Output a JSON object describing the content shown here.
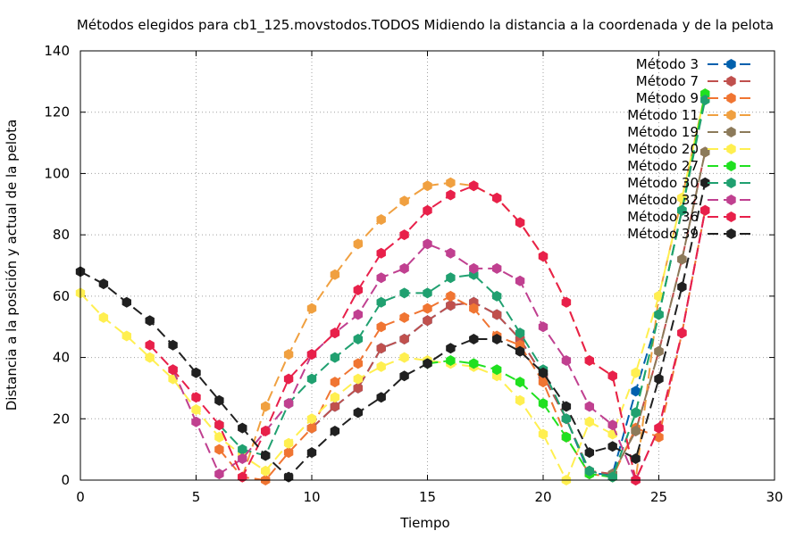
{
  "chart_data": {
    "type": "line",
    "title": "Métodos elegidos para cb1_125.movstodos.TODOS Midiendo la distancia a la coordenada y de la pelota",
    "xlabel": "Tiempo",
    "ylabel": "Distancia a la posición y actual de la pelota",
    "xlim": [
      0,
      30
    ],
    "ylim": [
      0,
      140
    ],
    "xticks": [
      0,
      5,
      10,
      15,
      20,
      25,
      30
    ],
    "yticks": [
      0,
      20,
      40,
      60,
      80,
      100,
      120,
      140
    ],
    "grid": true,
    "legend_position": "top-right",
    "series": [
      {
        "name": "Método 3",
        "color": "#0060ad",
        "points": [
          [
            10,
            17
          ],
          [
            11,
            24
          ],
          [
            12,
            30
          ],
          [
            13,
            43
          ],
          [
            14,
            46
          ],
          [
            15,
            52
          ],
          [
            16,
            57
          ],
          [
            17,
            58
          ],
          [
            18,
            54
          ],
          [
            19,
            46
          ],
          [
            20,
            34
          ],
          [
            21,
            20
          ],
          [
            22,
            2
          ],
          [
            23,
            2
          ],
          [
            24,
            29
          ],
          [
            25,
            54
          ],
          [
            26,
            88
          ],
          [
            27,
            126
          ]
        ]
      },
      {
        "name": "Método 7",
        "color": "#c0504d",
        "points": [
          [
            10,
            17
          ],
          [
            11,
            24
          ],
          [
            12,
            30
          ],
          [
            13,
            43
          ],
          [
            14,
            46
          ],
          [
            15,
            52
          ],
          [
            16,
            57
          ],
          [
            17,
            58
          ],
          [
            18,
            54
          ],
          [
            19,
            46
          ],
          [
            20,
            34
          ],
          [
            21,
            20
          ],
          [
            22,
            3
          ],
          [
            23,
            2
          ],
          [
            24,
            16
          ],
          [
            25,
            42
          ],
          [
            26,
            72
          ],
          [
            27,
            107
          ]
        ]
      },
      {
        "name": "Método 9",
        "color": "#f07532",
        "points": [
          [
            6,
            10
          ],
          [
            7,
            1
          ],
          [
            8,
            0
          ],
          [
            9,
            9
          ],
          [
            10,
            17
          ],
          [
            11,
            32
          ],
          [
            12,
            38
          ],
          [
            13,
            50
          ],
          [
            14,
            53
          ],
          [
            15,
            56
          ],
          [
            16,
            60
          ],
          [
            17,
            56
          ],
          [
            18,
            47
          ],
          [
            19,
            44
          ],
          [
            20,
            32
          ],
          [
            21,
            14
          ],
          [
            22,
            2
          ],
          [
            23,
            1
          ],
          [
            24,
            17
          ],
          [
            25,
            14
          ],
          [
            26,
            48
          ],
          [
            27,
            88
          ]
        ]
      },
      {
        "name": "Método 11",
        "color": "#f0a040",
        "points": [
          [
            7,
            1
          ],
          [
            8,
            24
          ],
          [
            9,
            41
          ],
          [
            10,
            56
          ],
          [
            11,
            67
          ],
          [
            12,
            77
          ],
          [
            13,
            85
          ],
          [
            14,
            91
          ],
          [
            15,
            96
          ],
          [
            16,
            97
          ],
          [
            17,
            96
          ],
          [
            18,
            92
          ],
          [
            19,
            84
          ],
          [
            20,
            73
          ],
          [
            21,
            58
          ],
          [
            22,
            39
          ],
          [
            23,
            34
          ],
          [
            24,
            0
          ],
          [
            25,
            60
          ],
          [
            26,
            92
          ],
          [
            27,
            126
          ]
        ]
      },
      {
        "name": "Método 19",
        "color": "#8c7a5a",
        "points": [
          [
            23,
            2
          ],
          [
            24,
            16
          ],
          [
            25,
            42
          ],
          [
            26,
            72
          ],
          [
            27,
            107
          ]
        ]
      },
      {
        "name": "Método 20",
        "color": "#ffef50",
        "points": [
          [
            0,
            61
          ],
          [
            1,
            53
          ],
          [
            2,
            47
          ],
          [
            3,
            40
          ],
          [
            4,
            33
          ],
          [
            5,
            23
          ],
          [
            6,
            14
          ],
          [
            7,
            8
          ],
          [
            8,
            3
          ],
          [
            9,
            12
          ],
          [
            10,
            20
          ],
          [
            11,
            27
          ],
          [
            12,
            33
          ],
          [
            13,
            37
          ],
          [
            14,
            40
          ],
          [
            15,
            39
          ],
          [
            16,
            38
          ],
          [
            17,
            37
          ],
          [
            18,
            34
          ],
          [
            19,
            26
          ],
          [
            20,
            15
          ],
          [
            21,
            0
          ],
          [
            22,
            19
          ],
          [
            23,
            15
          ],
          [
            24,
            35
          ],
          [
            25,
            60
          ],
          [
            26,
            92
          ],
          [
            27,
            126
          ]
        ]
      },
      {
        "name": "Método 27",
        "color": "#20e020",
        "points": [
          [
            15,
            38
          ],
          [
            16,
            39
          ],
          [
            17,
            38
          ],
          [
            18,
            36
          ],
          [
            19,
            32
          ],
          [
            20,
            25
          ],
          [
            21,
            14
          ],
          [
            22,
            2
          ],
          [
            23,
            1
          ],
          [
            24,
            22
          ],
          [
            25,
            54
          ],
          [
            26,
            88
          ],
          [
            27,
            126
          ]
        ]
      },
      {
        "name": "Método 30",
        "color": "#20a070",
        "points": [
          [
            6,
            18
          ],
          [
            7,
            10
          ],
          [
            8,
            8
          ],
          [
            9,
            25
          ],
          [
            10,
            33
          ],
          [
            11,
            40
          ],
          [
            12,
            46
          ],
          [
            13,
            58
          ],
          [
            14,
            61
          ],
          [
            15,
            61
          ],
          [
            16,
            66
          ],
          [
            17,
            67
          ],
          [
            18,
            60
          ],
          [
            19,
            48
          ],
          [
            20,
            36
          ],
          [
            21,
            20
          ],
          [
            22,
            3
          ],
          [
            23,
            1
          ],
          [
            24,
            22
          ],
          [
            25,
            54
          ],
          [
            26,
            88
          ],
          [
            27,
            124
          ]
        ]
      },
      {
        "name": "Método 32",
        "color": "#c04090",
        "points": [
          [
            4,
            36
          ],
          [
            5,
            19
          ],
          [
            6,
            2
          ],
          [
            7,
            7
          ],
          [
            8,
            16
          ],
          [
            9,
            25
          ],
          [
            10,
            41
          ],
          [
            11,
            48
          ],
          [
            12,
            54
          ],
          [
            13,
            66
          ],
          [
            14,
            69
          ],
          [
            15,
            77
          ],
          [
            16,
            74
          ],
          [
            17,
            69
          ],
          [
            18,
            69
          ],
          [
            19,
            65
          ],
          [
            20,
            50
          ],
          [
            21,
            39
          ],
          [
            22,
            24
          ],
          [
            23,
            18
          ],
          [
            24,
            0
          ],
          [
            25,
            17
          ],
          [
            26,
            48
          ],
          [
            27,
            88
          ]
        ]
      },
      {
        "name": "Método 36",
        "color": "#e8204a",
        "points": [
          [
            3,
            44
          ],
          [
            4,
            36
          ],
          [
            5,
            27
          ],
          [
            6,
            18
          ],
          [
            7,
            1
          ],
          [
            8,
            16
          ],
          [
            9,
            33
          ],
          [
            10,
            41
          ],
          [
            11,
            48
          ],
          [
            12,
            62
          ],
          [
            13,
            74
          ],
          [
            14,
            80
          ],
          [
            15,
            88
          ],
          [
            16,
            93
          ],
          [
            17,
            96
          ],
          [
            18,
            92
          ],
          [
            19,
            84
          ],
          [
            20,
            73
          ],
          [
            21,
            58
          ],
          [
            22,
            39
          ],
          [
            23,
            34
          ],
          [
            24,
            0
          ],
          [
            25,
            17
          ],
          [
            26,
            48
          ],
          [
            27,
            88
          ]
        ]
      },
      {
        "name": "Método 39",
        "color": "#202020",
        "points": [
          [
            0,
            68
          ],
          [
            1,
            64
          ],
          [
            2,
            58
          ],
          [
            3,
            52
          ],
          [
            4,
            44
          ],
          [
            5,
            35
          ],
          [
            6,
            26
          ],
          [
            7,
            17
          ],
          [
            8,
            8
          ],
          [
            9,
            1
          ],
          [
            10,
            9
          ],
          [
            11,
            16
          ],
          [
            12,
            22
          ],
          [
            13,
            27
          ],
          [
            14,
            34
          ],
          [
            15,
            38
          ],
          [
            16,
            43
          ],
          [
            17,
            46
          ],
          [
            18,
            46
          ],
          [
            19,
            42
          ],
          [
            20,
            35
          ],
          [
            21,
            24
          ],
          [
            22,
            9
          ],
          [
            23,
            11
          ],
          [
            24,
            7
          ],
          [
            25,
            33
          ],
          [
            26,
            63
          ],
          [
            27,
            97
          ]
        ]
      }
    ]
  }
}
